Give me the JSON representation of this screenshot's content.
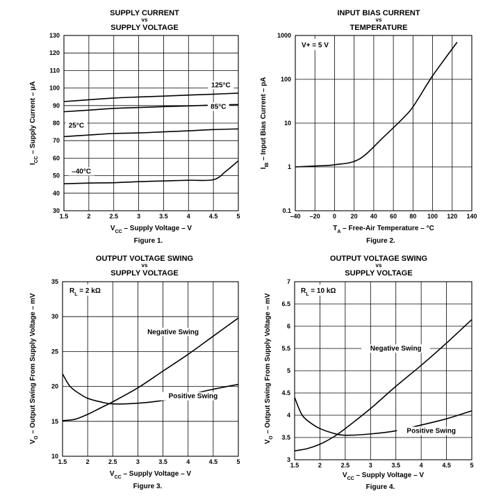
{
  "chart_data": [
    {
      "type": "line",
      "title": [
        "SUPPLY CURRENT",
        "vs",
        "SUPPLY VOLTAGE"
      ],
      "xlabel": [
        "V",
        "CC",
        " – Supply Voltage – V"
      ],
      "ylabel": [
        "I",
        "CC",
        " – Supply Current – µA"
      ],
      "figure": "Figure 1.",
      "xlim": [
        1.5,
        5
      ],
      "ylim": [
        30,
        130
      ],
      "yscale": "linear",
      "x_ticks": [
        1.5,
        2,
        2.5,
        3,
        3.5,
        4,
        4.5,
        5
      ],
      "x_tick_labels": [
        "1.5",
        "2",
        "2.5",
        "3",
        "3.5",
        "4",
        "4.5",
        "5"
      ],
      "y_ticks": [
        30,
        40,
        50,
        60,
        70,
        80,
        90,
        100,
        110,
        120,
        130
      ],
      "y_tick_labels": [
        "30",
        "40",
        "50",
        "60",
        "70",
        "80",
        "90",
        "100",
        "110",
        "120",
        "130"
      ],
      "grid": true,
      "series": [
        {
          "name": "125°C",
          "x": [
            1.5,
            2,
            2.5,
            3,
            3.5,
            4,
            4.5,
            5
          ],
          "y": [
            92.3,
            93.3,
            94.3,
            94.9,
            95.4,
            96.0,
            96.5,
            97.1
          ]
        },
        {
          "name": "85°C",
          "x": [
            1.5,
            2,
            2.5,
            3,
            3.5,
            4,
            4.5,
            5
          ],
          "y": [
            86.5,
            87.4,
            88.4,
            88.9,
            89.4,
            89.8,
            90.3,
            90.6
          ]
        },
        {
          "name": "25°C",
          "x": [
            1.5,
            2,
            2.5,
            3,
            3.5,
            4,
            4.5,
            5
          ],
          "y": [
            72.3,
            73.2,
            74.1,
            74.4,
            75.0,
            75.6,
            76.3,
            76.7
          ]
        },
        {
          "name": "–40°C",
          "x": [
            1.5,
            2,
            2.5,
            3,
            3.5,
            4,
            4.5,
            4.75,
            5
          ],
          "y": [
            45.4,
            45.8,
            46.0,
            46.6,
            47.0,
            47.4,
            47.7,
            52.5,
            58.5
          ]
        }
      ],
      "annotations": [
        {
          "text": "125°C",
          "x": 4.65,
          "y": 100.5
        },
        {
          "text": "85°C",
          "x": 4.6,
          "y": 88.2
        },
        {
          "text": "25°C",
          "x": 1.75,
          "y": 77.5
        },
        {
          "text": "–40°C",
          "x": 1.85,
          "y": 51.2
        }
      ]
    },
    {
      "type": "line",
      "title": [
        "INPUT BIAS CURRENT",
        "vs",
        "TEMPERATURE"
      ],
      "xlabel": [
        "T",
        "A",
        " – Free-Air Temperature – °C"
      ],
      "ylabel": [
        "I",
        "IB",
        " – Input Bias Current – pA"
      ],
      "figure": "Figure 2.",
      "xlim": [
        -40,
        140
      ],
      "ylim": [
        0.1,
        1000
      ],
      "yscale": "log",
      "x_ticks": [
        -40,
        -20,
        0,
        20,
        40,
        60,
        80,
        100,
        120,
        140
      ],
      "x_tick_labels": [
        "–40",
        "–20",
        "0",
        "20",
        "40",
        "60",
        "80",
        "100",
        "120",
        "140"
      ],
      "y_ticks": [
        0.1,
        1,
        10,
        100,
        1000
      ],
      "y_tick_labels": [
        "0.1",
        "1",
        "10",
        "100",
        "1000"
      ],
      "grid": true,
      "series": [
        {
          "name": "I_IB",
          "x": [
            -40,
            -20,
            0,
            25,
            50,
            75,
            85,
            100,
            125
          ],
          "y": [
            1.0,
            1.05,
            1.12,
            1.5,
            4.8,
            17,
            35,
            120,
            700
          ]
        }
      ],
      "annotations": [
        {
          "text": "V+ = 5 V"
        }
      ]
    },
    {
      "type": "line",
      "title": [
        "OUTPUT VOLTAGE SWING",
        "vs",
        "SUPPLY VOLTAGE"
      ],
      "xlabel": [
        "V",
        "CC",
        " – Supply Voltage – V"
      ],
      "ylabel": [
        "V",
        "O",
        " – Output Swing From Supply Voltage – mV"
      ],
      "figure": "Figure 3.",
      "xlim": [
        1.5,
        5
      ],
      "ylim": [
        10,
        35
      ],
      "yscale": "linear",
      "x_ticks": [
        1.5,
        2,
        2.5,
        3,
        3.5,
        4,
        4.5,
        5
      ],
      "x_tick_labels": [
        "1.5",
        "2",
        "2.5",
        "3",
        "3.5",
        "4",
        "4.5",
        "5"
      ],
      "y_ticks": [
        10,
        15,
        20,
        25,
        30,
        35
      ],
      "y_tick_labels": [
        "10",
        "15",
        "20",
        "25",
        "30",
        "35"
      ],
      "grid": true,
      "series": [
        {
          "name": "Negative Swing",
          "x": [
            1.5,
            1.75,
            2,
            2.25,
            2.5,
            3,
            3.5,
            4,
            4.5,
            5
          ],
          "y": [
            15.1,
            15.3,
            16.0,
            16.9,
            17.8,
            19.8,
            22.2,
            24.6,
            27.2,
            29.8
          ]
        },
        {
          "name": "Positive Swing",
          "x": [
            1.5,
            1.65,
            1.85,
            2,
            2.25,
            2.5,
            3,
            3.5,
            4,
            4.5,
            5
          ],
          "y": [
            21.8,
            20.0,
            18.9,
            18.3,
            17.8,
            17.5,
            17.6,
            18.0,
            18.8,
            19.6,
            20.3
          ]
        }
      ],
      "annotations": [
        {
          "text": "R",
          "sub": "L",
          "rest": " = 2 kΩ"
        },
        {
          "text": "Negative  Swing",
          "x": 3.7,
          "y": 27.5
        },
        {
          "text": "Positive  Swing",
          "x": 4.1,
          "y": 18.3
        }
      ]
    },
    {
      "type": "line",
      "title": [
        "OUTPUT VOLTAGE SWING",
        "vs",
        "SUPPLY VOLTAGE"
      ],
      "xlabel": [
        "V",
        "CC",
        " – Supply Voltage – V"
      ],
      "ylabel": [
        "V",
        "O",
        " – Output Swing From Supply Voltage – mV"
      ],
      "figure": "Figure 4.",
      "xlim": [
        1.5,
        5
      ],
      "ylim": [
        3,
        7
      ],
      "yscale": "linear",
      "x_ticks": [
        1.5,
        2,
        2.5,
        3,
        3.5,
        4,
        4.5,
        5
      ],
      "x_tick_labels": [
        "1.5",
        "2",
        "2.5",
        "3",
        "3.5",
        "4",
        "4.5",
        "5"
      ],
      "y_ticks": [
        3,
        3.5,
        4,
        4.5,
        5,
        5.5,
        6,
        6.5,
        7
      ],
      "y_tick_labels": [
        "3",
        "3.5",
        "4",
        "4.5",
        "5",
        "5.5",
        "6",
        "6.5",
        "7"
      ],
      "grid": true,
      "series": [
        {
          "name": "Negative Swing",
          "x": [
            1.5,
            1.75,
            2,
            2.25,
            2.5,
            3,
            3.5,
            4,
            4.5,
            5
          ],
          "y": [
            3.2,
            3.25,
            3.35,
            3.5,
            3.7,
            4.15,
            4.65,
            5.12,
            5.62,
            6.15
          ]
        },
        {
          "name": "Positive Swing",
          "x": [
            1.5,
            1.65,
            1.85,
            2,
            2.25,
            2.5,
            3,
            3.5,
            4,
            4.5,
            5
          ],
          "y": [
            4.4,
            4.0,
            3.8,
            3.7,
            3.6,
            3.55,
            3.58,
            3.65,
            3.78,
            3.92,
            4.1
          ]
        }
      ],
      "annotations": [
        {
          "text": "R",
          "sub": "L",
          "rest": " = 10 kΩ"
        },
        {
          "text": "Negative  Swing",
          "x": 3.5,
          "y": 5.45
        },
        {
          "text": "Positive  Swing",
          "x": 4.2,
          "y": 3.6
        }
      ]
    }
  ]
}
